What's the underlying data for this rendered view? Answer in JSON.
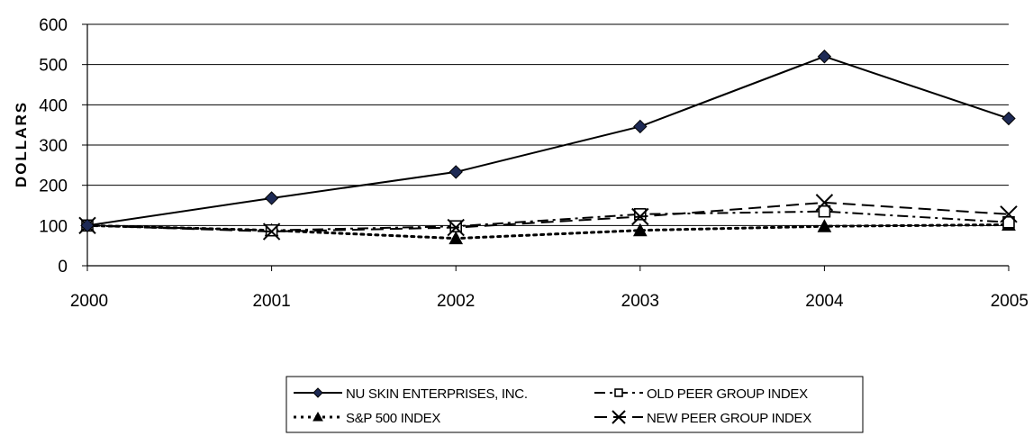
{
  "chart_data": {
    "type": "line",
    "title": "",
    "xlabel": "",
    "ylabel": "DOLLARS",
    "x": [
      "2000",
      "2001",
      "2002",
      "2003",
      "2004",
      "2005"
    ],
    "ylim": [
      0,
      600
    ],
    "yticks": [
      "0",
      "100",
      "200",
      "300",
      "400",
      "500",
      "600"
    ],
    "grid": true,
    "legend_position": "bottom-center",
    "series": [
      {
        "name": "NU SKIN ENTERPRISES, INC.",
        "values": [
          100,
          168,
          233,
          346,
          520,
          366
        ],
        "marker": "diamond-filled",
        "dash": "solid",
        "color": "#000000"
      },
      {
        "name": "OLD PEER GROUP INDEX",
        "values": [
          100,
          88,
          98,
          128,
          135,
          108
        ],
        "marker": "square-open",
        "dash": "dash-dot",
        "color": "#000000"
      },
      {
        "name": "S&P 500 INDEX",
        "values": [
          100,
          88,
          68,
          88,
          98,
          102
        ],
        "marker": "triangle-filled",
        "dash": "dotted",
        "color": "#000000"
      },
      {
        "name": "NEW PEER GROUP INDEX",
        "values": [
          100,
          85,
          95,
          122,
          157,
          128
        ],
        "marker": "x-cross",
        "dash": "dashed",
        "color": "#000000"
      }
    ]
  }
}
